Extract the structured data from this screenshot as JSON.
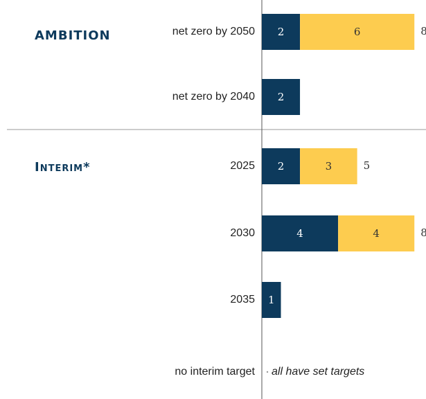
{
  "chart_data": {
    "type": "stacked_barh",
    "categories": [
      "net zero by 2050",
      "net zero by 2040",
      "2025",
      "2030",
      "2035",
      "no interim target"
    ],
    "series": [
      {
        "color": "#0d3a5c",
        "label_color": "#ffffff",
        "values": [
          2,
          2,
          2,
          4,
          1,
          null
        ]
      },
      {
        "color": "#fdcc4f",
        "label_color": "#333333",
        "values": [
          6,
          null,
          3,
          4,
          null,
          null
        ]
      }
    ],
    "totals": [
      8,
      null,
      5,
      8,
      null,
      null
    ],
    "xlim": [
      0,
      8.5
    ],
    "groups": [
      {
        "label": "AMBITION",
        "categories": [
          0,
          1
        ]
      },
      {
        "label": "Interim*",
        "categories": [
          2,
          3,
          4,
          5
        ]
      }
    ],
    "annotation": "all have set targets"
  }
}
